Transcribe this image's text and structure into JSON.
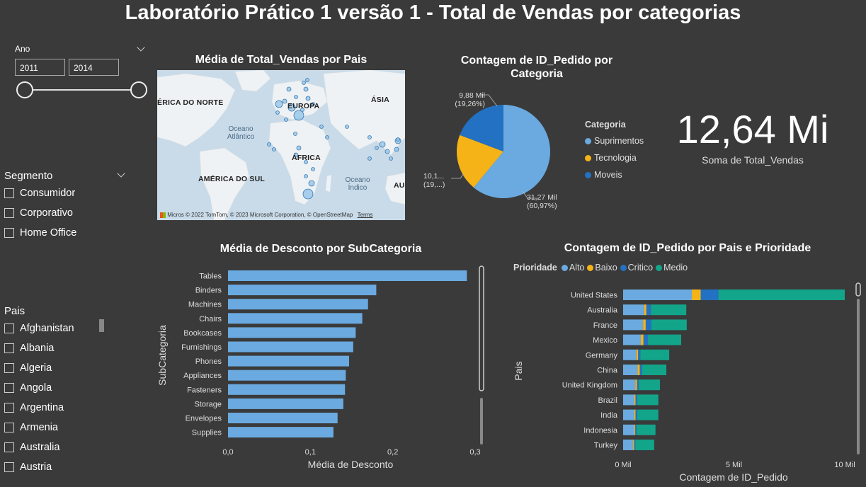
{
  "title": "Laboratório Prático 1 versão 1 - Total de Vendas por categorias",
  "ano_slicer": {
    "label": "Ano",
    "from": "2011",
    "to": "2014"
  },
  "segmento_slicer": {
    "label": "Segmento",
    "items": [
      "Consumidor",
      "Corporativo",
      "Home Office"
    ]
  },
  "pais_slicer": {
    "label": "Pais",
    "items": [
      "Afghanistan",
      "Albania",
      "Algeria",
      "Angola",
      "Argentina",
      "Armenia",
      "Australia",
      "Austria"
    ]
  },
  "map_visual": {
    "title": "Média de Total_Vendas por Pais",
    "labels": {
      "north_america": "ÉRICA DO NORTE",
      "europe": "EUROPA",
      "asia": "ÁSIA",
      "africa": "ÁFRICA",
      "south_america": "AMÉRICA DO SUL",
      "oceania_cut": "AU"
    },
    "oceans": {
      "atlantic": "Oceano Atlântico",
      "indian": "Oceano Índico"
    },
    "attribution": "© 2022 TomTom, © 2023 Microsoft Corporation, © OpenStreetMap",
    "terms": "Terms",
    "logo_text": "Micros"
  },
  "pie_visual": {
    "title_line1": "Contagem de ID_Pedido por",
    "title_line2": "Categoria",
    "legend_title": "Categoria",
    "labels": {
      "moveis_value": "9,88 Mil",
      "moveis_pct": "(19,26%)",
      "tecnologia_value": "10,1...",
      "tecnologia_pct": "(19,...)",
      "suprimentos_value": "31,27 Mil",
      "suprimentos_pct": "(60,97%)"
    }
  },
  "kpi": {
    "value": "12,64 Mi",
    "label": "Soma de Total_Vendas"
  },
  "bar_visual": {
    "title": "Média de Desconto por SubCategoria"
  },
  "stacked_visual": {
    "title": "Contagem de ID_Pedido por Pais e Prioridade",
    "legend_title": "Prioridade"
  },
  "colors": {
    "light_blue": "#6aaae0",
    "yellow": "#f5b318",
    "dark_blue": "#2371c2",
    "teal": "#12a58a",
    "background": "#3a3a3a"
  },
  "chart_data": [
    {
      "type": "pie",
      "slices": [
        {
          "name": "Suprimentos",
          "value": 31270,
          "percent": 60.97,
          "color": "#6aaae0"
        },
        {
          "name": "Tecnologia",
          "value": 10100,
          "percent": 19.77,
          "color": "#f5b318"
        },
        {
          "name": "Moveis",
          "value": 9880,
          "percent": 19.26,
          "color": "#2371c2"
        }
      ]
    },
    {
      "type": "bar",
      "orientation": "horizontal",
      "categories": [
        "Tables",
        "Binders",
        "Machines",
        "Chairs",
        "Bookcases",
        "Furnishings",
        "Phones",
        "Appliances",
        "Fasteners",
        "Storage",
        "Envelopes",
        "Supplies"
      ],
      "values": [
        0.29,
        0.18,
        0.17,
        0.163,
        0.155,
        0.152,
        0.147,
        0.143,
        0.142,
        0.14,
        0.133,
        0.128
      ],
      "xlabel": "Média de Desconto",
      "ylabel": "SubCategoria",
      "xticks": [
        "0,0",
        "0,1",
        "0,2",
        "0,3"
      ],
      "xlim": [
        0,
        0.3
      ],
      "color": "#6aaae0"
    },
    {
      "type": "bar",
      "orientation": "horizontal",
      "stacked": true,
      "categories": [
        "United States",
        "Australia",
        "France",
        "Mexico",
        "Germany",
        "China",
        "United Kingdom",
        "Brazil",
        "India",
        "Indonesia",
        "Turkey"
      ],
      "series": [
        {
          "name": "Alto",
          "color": "#6aaae0",
          "values": [
            3.1,
            0.95,
            0.9,
            0.8,
            0.6,
            0.65,
            0.55,
            0.5,
            0.5,
            0.5,
            0.45
          ]
        },
        {
          "name": "Baixo",
          "color": "#f5b318",
          "values": [
            0.4,
            0.1,
            0.12,
            0.12,
            0.08,
            0.1,
            0.08,
            0.06,
            0.06,
            0.05,
            0.05
          ]
        },
        {
          "name": "Critico",
          "color": "#2371c2",
          "values": [
            0.8,
            0.2,
            0.25,
            0.2,
            0.1,
            0.1,
            0.08,
            0.08,
            0.08,
            0.06,
            0.05
          ]
        },
        {
          "name": "Medio",
          "color": "#12a58a",
          "values": [
            5.7,
            1.6,
            1.6,
            1.5,
            1.3,
            1.1,
            0.95,
            0.95,
            0.95,
            0.85,
            0.85
          ]
        }
      ],
      "xlabel": "Contagem de ID_Pedido",
      "ylabel": "Pais",
      "xticks": [
        "0 Mil",
        "5 Mil",
        "10 Mil"
      ],
      "xlim": [
        0,
        10
      ]
    }
  ]
}
